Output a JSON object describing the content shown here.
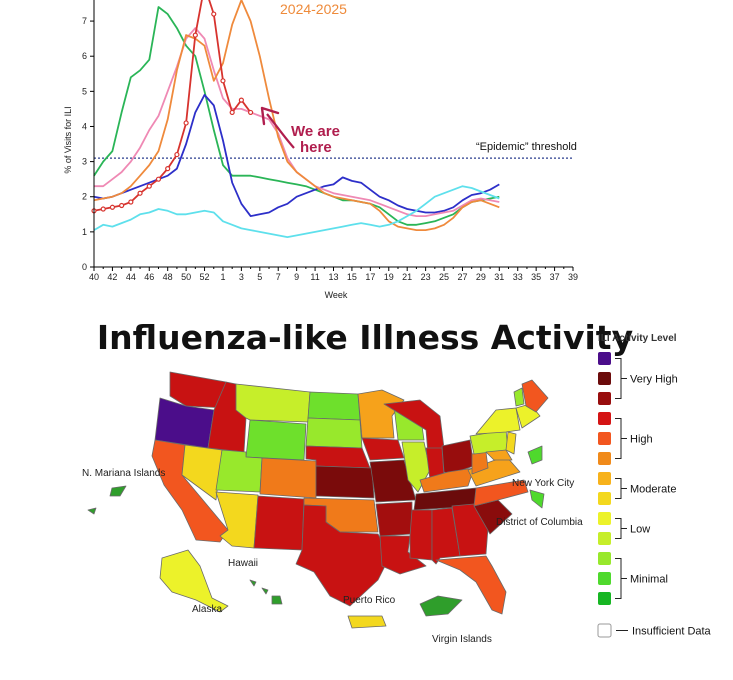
{
  "chart_data": {
    "type": "line",
    "title": "",
    "xlabel": "Week",
    "ylabel": "% of Visits for ILI",
    "x_ticks": [
      "40",
      "42",
      "44",
      "46",
      "48",
      "50",
      "52",
      "1",
      "3",
      "5",
      "7",
      "9",
      "11",
      "13",
      "15",
      "17",
      "19",
      "21",
      "23",
      "25",
      "27",
      "29",
      "31",
      "33",
      "35",
      "37",
      "39"
    ],
    "ylim": [
      0,
      7.6
    ],
    "y_ticks": [
      "0",
      "1",
      "2",
      "3",
      "4",
      "5",
      "6",
      "7"
    ],
    "threshold": {
      "value": 3.1,
      "label": "“Epidemic” threshold"
    },
    "series_label": "2024-2025",
    "annotation": {
      "line1": "We are",
      "line2": "here"
    },
    "series": [
      {
        "color": "#2ab557",
        "values": [
          2.6,
          3.0,
          3.3,
          4.4,
          5.4,
          5.6,
          5.9,
          7.4,
          7.2,
          6.8,
          6.3,
          6.0,
          5.0,
          3.9,
          2.9,
          2.6,
          2.6,
          2.6,
          2.55,
          2.5,
          2.45,
          2.4,
          2.35,
          2.3,
          2.2,
          2.1,
          2.0,
          1.9,
          1.9,
          1.85,
          1.8,
          1.7,
          1.5,
          1.3,
          1.2,
          1.2,
          1.25,
          1.3,
          1.4,
          1.5,
          1.7,
          1.85,
          1.9,
          1.95,
          2.0
        ]
      },
      {
        "color": "#2d2fc9",
        "values": [
          2.0,
          1.95,
          2.0,
          2.1,
          2.2,
          2.3,
          2.4,
          2.5,
          2.6,
          2.8,
          3.5,
          4.4,
          4.9,
          4.6,
          3.6,
          2.4,
          1.8,
          1.45,
          1.5,
          1.55,
          1.7,
          1.8,
          2.0,
          2.1,
          2.2,
          2.3,
          2.35,
          2.55,
          2.45,
          2.4,
          2.2,
          2.0,
          1.9,
          1.75,
          1.65,
          1.6,
          1.55,
          1.55,
          1.6,
          1.7,
          1.9,
          2.05,
          2.1,
          2.2,
          2.35
        ]
      },
      {
        "color": "#ef89b4",
        "values": [
          2.3,
          2.3,
          2.5,
          2.7,
          3.0,
          3.4,
          3.9,
          4.3,
          5.0,
          5.7,
          6.5,
          6.8,
          6.5,
          5.6,
          4.8,
          4.5,
          4.5,
          4.4,
          4.3,
          4.2,
          3.8,
          3.1,
          2.7,
          2.5,
          2.3,
          2.2,
          2.1,
          2.05,
          2.0,
          1.95,
          1.9,
          1.8,
          1.7,
          1.6,
          1.5,
          1.45,
          1.45,
          1.5,
          1.55,
          1.6,
          1.75,
          1.9,
          1.95,
          1.9,
          1.85
        ]
      },
      {
        "color": "#ef8a3c",
        "values": [
          1.9,
          1.95,
          2.0,
          2.1,
          2.3,
          2.6,
          2.9,
          3.3,
          4.2,
          5.6,
          6.6,
          6.5,
          6.3,
          5.3,
          5.8,
          6.9,
          7.6,
          7.0,
          6.0,
          4.8,
          3.7,
          3.0,
          2.7,
          2.5,
          2.3,
          2.1,
          2.0,
          1.95,
          1.9,
          1.85,
          1.8,
          1.6,
          1.3,
          1.15,
          1.1,
          1.05,
          1.05,
          1.1,
          1.2,
          1.4,
          1.7,
          1.85,
          1.9,
          1.8,
          1.7
        ]
      },
      {
        "color": "#5ee0ec",
        "values": [
          1.05,
          1.2,
          1.15,
          1.25,
          1.35,
          1.5,
          1.55,
          1.65,
          1.6,
          1.5,
          1.5,
          1.55,
          1.6,
          1.55,
          1.3,
          1.2,
          1.1,
          1.05,
          1.0,
          0.95,
          0.9,
          0.85,
          0.9,
          0.95,
          1.0,
          1.05,
          1.1,
          1.15,
          1.2,
          1.25,
          1.2,
          1.15,
          1.2,
          1.3,
          1.45,
          1.6,
          1.8,
          2.0,
          2.1,
          2.2,
          2.3,
          2.25,
          2.15,
          2.05,
          1.95
        ]
      },
      {
        "color": "#d7332e",
        "markers": true,
        "values": [
          1.6,
          1.65,
          1.7,
          1.75,
          1.85,
          2.1,
          2.3,
          2.5,
          2.8,
          3.2,
          4.1,
          6.6,
          8.2,
          7.2,
          5.3,
          4.4,
          4.75,
          4.4
        ]
      }
    ]
  },
  "map": {
    "title": "Influenza-like Illness Activity",
    "labels": {
      "mariana": "N. Mariana Islands",
      "nyc": "New York City",
      "dc": "District of Columbia",
      "hawaii": "Hawaii",
      "alaska": "Alaska",
      "puerto_rico": "Puerto Rico",
      "virgin_islands": "Virgin Islands"
    }
  },
  "legend": {
    "title": "ILI Activity Level",
    "swatches": [
      "#4b0d8a",
      "#6b0b0b",
      "#980d0d",
      "#d41414",
      "#f2561f",
      "#f08a1a",
      "#f7b21b",
      "#f3d81e",
      "#ecf22a",
      "#c6ee2a",
      "#98e82c",
      "#4fd92d",
      "#17b623",
      "#ffffff"
    ],
    "groups": [
      {
        "label": "Very High",
        "from": 0,
        "to": 2
      },
      {
        "label": "High",
        "from": 3,
        "to": 5
      },
      {
        "label": "Moderate",
        "from": 6,
        "to": 7
      },
      {
        "label": "Low",
        "from": 8,
        "to": 9
      },
      {
        "label": "Minimal",
        "from": 10,
        "to": 12
      }
    ],
    "insufficient": "Insufficient Data"
  }
}
